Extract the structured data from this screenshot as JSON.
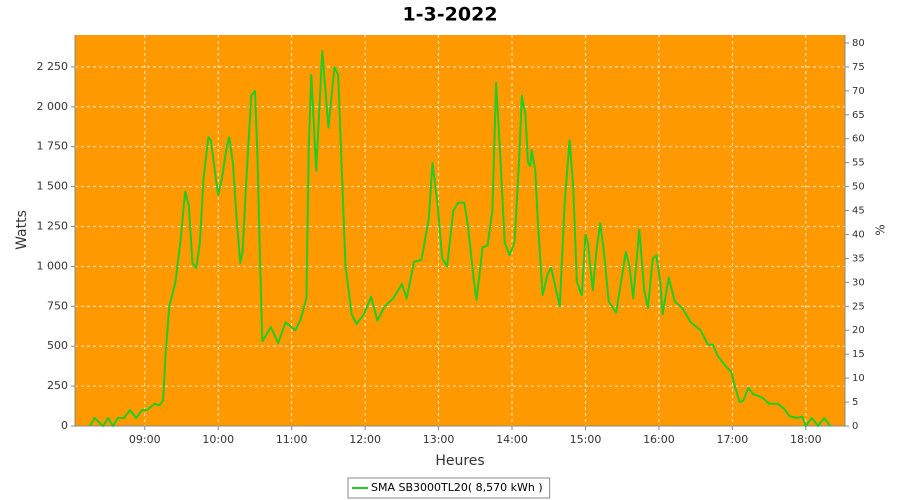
{
  "chart_data": {
    "type": "line",
    "title": "1-3-2022",
    "x_label": "Heures",
    "y_label": "Watts",
    "y2_label": "%",
    "x": [
      "08:15",
      "08:19",
      "08:23",
      "08:26",
      "08:30",
      "08:34",
      "08:38",
      "08:43",
      "08:48",
      "08:53",
      "08:58",
      "09:02",
      "09:08",
      "09:12",
      "09:15",
      "09:17",
      "09:20",
      "09:25",
      "09:29",
      "09:33",
      "09:36",
      "09:39",
      "09:42",
      "09:45",
      "09:48",
      "09:52",
      "09:54",
      "09:58",
      "10:00",
      "10:03",
      "10:07",
      "10:09",
      "10:12",
      "10:15",
      "10:18",
      "10:20",
      "10:23",
      "10:27",
      "10:30",
      "10:32",
      "10:34",
      "10:36",
      "10:43",
      "10:49",
      "10:55",
      "11:03",
      "11:07",
      "11:12",
      "11:14",
      "11:16",
      "11:20",
      "11:25",
      "11:30",
      "11:35",
      "11:38",
      "11:40",
      "11:44",
      "11:49",
      "11:53",
      "11:59",
      "12:05",
      "12:10",
      "12:16",
      "12:23",
      "12:30",
      "12:34",
      "12:40",
      "12:46",
      "12:52",
      "12:55",
      "12:59",
      "13:03",
      "13:07",
      "13:12",
      "13:16",
      "13:21",
      "13:24",
      "13:29",
      "13:31",
      "13:36",
      "13:40",
      "13:44",
      "13:47",
      "13:50",
      "13:54",
      "13:58",
      "14:02",
      "14:06",
      "14:08",
      "14:11",
      "14:13",
      "14:15",
      "14:16",
      "14:19",
      "14:21",
      "14:25",
      "14:29",
      "14:32",
      "14:36",
      "14:39",
      "14:43",
      "14:47",
      "14:50",
      "14:53",
      "14:57",
      "15:00",
      "15:02",
      "15:06",
      "15:09",
      "15:12",
      "15:15",
      "15:19",
      "15:25",
      "15:29",
      "15:33",
      "15:36",
      "15:39",
      "15:44",
      "15:48",
      "15:51",
      "15:55",
      "15:58",
      "16:01",
      "16:03",
      "16:08",
      "16:13",
      "16:19",
      "16:26",
      "16:34",
      "16:40",
      "16:44",
      "16:48",
      "16:54",
      "16:59",
      "17:02",
      "17:06",
      "17:09",
      "17:13",
      "17:17",
      "17:24",
      "17:30",
      "17:37",
      "17:42",
      "17:47",
      "17:53",
      "17:57",
      "18:00",
      "18:05",
      "18:10",
      "18:15",
      "18:20"
    ],
    "series": [
      {
        "name": "SMA SB3000TL20( 8,570 kWh )",
        "color": "#22cc22",
        "values": [
          0,
          50,
          20,
          0,
          50,
          0,
          50,
          50,
          100,
          50,
          100,
          100,
          140,
          130,
          160,
          450,
          750,
          900,
          1150,
          1470,
          1380,
          1020,
          990,
          1150,
          1550,
          1810,
          1790,
          1550,
          1450,
          1550,
          1750,
          1810,
          1650,
          1300,
          1020,
          1100,
          1550,
          2070,
          2100,
          1700,
          1100,
          530,
          620,
          520,
          650,
          600,
          660,
          800,
          1750,
          2200,
          1600,
          2350,
          1870,
          2250,
          2200,
          1800,
          1000,
          700,
          640,
          700,
          810,
          660,
          750,
          800,
          890,
          800,
          1030,
          1040,
          1300,
          1650,
          1400,
          1050,
          1000,
          1350,
          1400,
          1400,
          1250,
          900,
          790,
          1120,
          1130,
          1350,
          2150,
          1750,
          1150,
          1070,
          1150,
          1700,
          2070,
          1950,
          1650,
          1630,
          1730,
          1600,
          1300,
          820,
          950,
          990,
          850,
          750,
          1400,
          1790,
          1500,
          900,
          820,
          1200,
          1150,
          850,
          1100,
          1270,
          1100,
          780,
          710,
          900,
          1090,
          1000,
          800,
          1230,
          850,
          740,
          1050,
          1070,
          900,
          700,
          930,
          780,
          740,
          650,
          600,
          510,
          510,
          440,
          380,
          340,
          250,
          150,
          160,
          240,
          200,
          180,
          140,
          140,
          110,
          60,
          50,
          60,
          0,
          50,
          0,
          50,
          0
        ]
      }
    ],
    "xlim": [
      "08:03",
      "18:32"
    ],
    "xticks": [
      "09:00",
      "10:00",
      "11:00",
      "12:00",
      "13:00",
      "14:00",
      "15:00",
      "16:00",
      "17:00",
      "18:00"
    ],
    "ylim": [
      0,
      2450
    ],
    "yticks": [
      0,
      250,
      500,
      750,
      {
        "value": 1000,
        "label": "1 000"
      },
      {
        "value": 1250,
        "label": "1 250"
      },
      {
        "value": 1500,
        "label": "1 500"
      },
      {
        "value": 1750,
        "label": "1 750"
      },
      {
        "value": 2000,
        "label": "2 000"
      },
      {
        "value": 2250,
        "label": "2 250"
      }
    ],
    "y2lim": [
      0,
      81.67
    ],
    "y2ticks": [
      0,
      5,
      10,
      15,
      20,
      25,
      30,
      35,
      40,
      45,
      50,
      55,
      60,
      65,
      70,
      75,
      80
    ],
    "grid": true,
    "plot_background": "#ff9900",
    "legend": "bottom"
  }
}
